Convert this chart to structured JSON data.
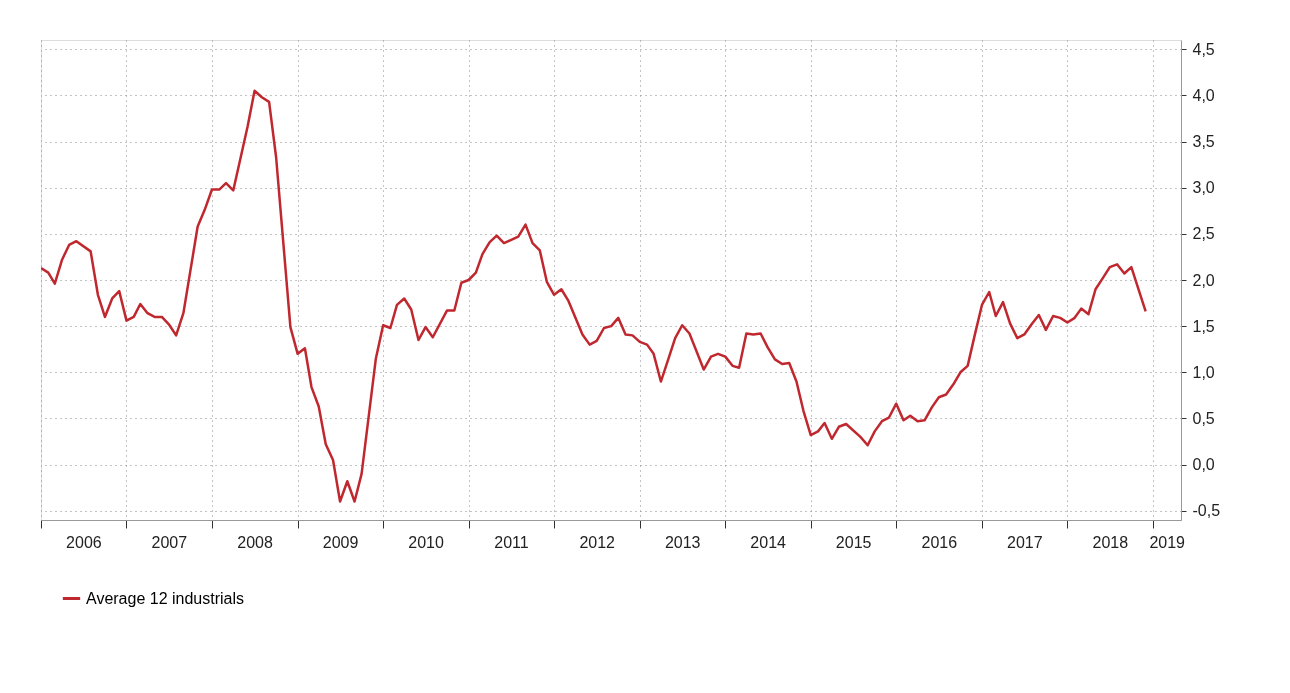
{
  "chart_data": {
    "type": "line",
    "x": [
      "2006-01",
      "2006-02",
      "2006-03",
      "2006-04",
      "2006-05",
      "2006-06",
      "2006-08",
      "2006-09",
      "2006-10",
      "2006-11",
      "2006-12",
      "2007-01",
      "2007-02",
      "2007-03",
      "2007-04",
      "2007-05",
      "2007-06",
      "2007-07",
      "2007-08",
      "2007-09",
      "2007-11",
      "2007-12",
      "2008-01",
      "2008-02",
      "2008-03",
      "2008-04",
      "2008-06",
      "2008-07",
      "2008-08",
      "2008-09",
      "2008-10",
      "2008-12",
      "2009-01",
      "2009-02",
      "2009-03",
      "2009-04",
      "2009-05",
      "2009-06",
      "2009-07",
      "2009-08",
      "2009-09",
      "2009-10",
      "2009-12",
      "2010-01",
      "2010-02",
      "2010-03",
      "2010-04",
      "2010-05",
      "2010-06",
      "2010-07",
      "2010-08",
      "2010-10",
      "2010-11",
      "2010-12",
      "2011-01",
      "2011-02",
      "2011-03",
      "2011-04",
      "2011-05",
      "2011-06",
      "2011-08",
      "2011-09",
      "2011-10",
      "2011-11",
      "2011-12",
      "2012-01",
      "2012-02",
      "2012-03",
      "2012-05",
      "2012-06",
      "2012-07",
      "2012-08",
      "2012-09",
      "2012-10",
      "2012-11",
      "2012-12",
      "2013-01",
      "2013-02",
      "2013-03",
      "2013-04",
      "2013-05",
      "2013-06",
      "2013-07",
      "2013-08",
      "2013-10",
      "2013-11",
      "2013-12",
      "2014-01",
      "2014-02",
      "2014-03",
      "2014-04",
      "2014-05",
      "2014-06",
      "2014-07",
      "2014-08",
      "2014-09",
      "2014-10",
      "2014-11",
      "2014-12",
      "2015-01",
      "2015-02",
      "2015-03",
      "2015-04",
      "2015-05",
      "2015-06",
      "2015-08",
      "2015-09",
      "2015-10",
      "2015-11",
      "2015-12",
      "2016-01",
      "2016-02",
      "2016-03",
      "2016-04",
      "2016-05",
      "2016-06",
      "2016-07",
      "2016-08",
      "2016-09",
      "2016-10",
      "2016-11",
      "2016-12",
      "2017-01",
      "2017-02",
      "2017-03",
      "2017-04",
      "2017-05",
      "2017-06",
      "2017-07",
      "2017-08",
      "2017-09",
      "2017-10",
      "2017-11",
      "2017-12",
      "2018-01",
      "2018-02",
      "2018-03",
      "2018-04",
      "2018-05",
      "2018-06",
      "2018-07",
      "2018-08",
      "2018-09",
      "2018-10",
      "2018-12"
    ],
    "series": [
      {
        "name": "Average 12 industrials",
        "color": "#c0282f",
        "values": [
          2.13,
          2.08,
          1.96,
          2.22,
          2.38,
          2.42,
          2.31,
          1.84,
          1.6,
          1.8,
          1.88,
          1.56,
          1.6,
          1.74,
          1.64,
          1.6,
          1.6,
          1.52,
          1.4,
          1.64,
          2.58,
          2.76,
          2.98,
          2.98,
          3.05,
          2.97,
          3.66,
          4.05,
          3.98,
          3.93,
          3.33,
          1.49,
          1.2,
          1.26,
          0.84,
          0.63,
          0.22,
          0.05,
          -0.4,
          -0.18,
          -0.4,
          -0.1,
          1.15,
          1.51,
          1.48,
          1.73,
          1.8,
          1.68,
          1.35,
          1.49,
          1.38,
          1.67,
          1.67,
          1.97,
          2.0,
          2.08,
          2.28,
          2.41,
          2.48,
          2.4,
          2.47,
          2.6,
          2.4,
          2.32,
          1.98,
          1.84,
          1.9,
          1.78,
          1.41,
          1.3,
          1.34,
          1.48,
          1.5,
          1.59,
          1.41,
          1.4,
          1.33,
          1.3,
          1.2,
          0.9,
          1.13,
          1.37,
          1.51,
          1.42,
          1.03,
          1.17,
          1.2,
          1.17,
          1.07,
          1.05,
          1.42,
          1.41,
          1.42,
          1.27,
          1.14,
          1.09,
          1.1,
          0.9,
          0.58,
          0.32,
          0.36,
          0.45,
          0.28,
          0.41,
          0.44,
          0.3,
          0.21,
          0.36,
          0.47,
          0.51,
          0.66,
          0.48,
          0.53,
          0.47,
          0.48,
          0.62,
          0.73,
          0.76,
          0.87,
          1.0,
          1.07,
          1.4,
          1.73,
          1.87,
          1.61,
          1.76,
          1.53,
          1.37,
          1.41,
          1.52,
          1.62,
          1.46,
          1.61,
          1.59,
          1.54,
          1.59,
          1.69,
          1.63,
          1.9,
          2.02,
          2.14,
          2.17,
          2.07,
          2.14,
          1.66
        ]
      }
    ],
    "xlim": [
      "2006-01",
      "2019-05"
    ],
    "xticks": [
      {
        "value": "2006-01",
        "label": null
      },
      {
        "value": "2007-01",
        "label": null
      },
      {
        "value": "2008-01",
        "label": null
      },
      {
        "value": "2009-01",
        "label": null
      },
      {
        "value": "2010-01",
        "label": null
      },
      {
        "value": "2011-01",
        "label": null
      },
      {
        "value": "2012-01",
        "label": null
      },
      {
        "value": "2013-01",
        "label": null
      },
      {
        "value": "2014-01",
        "label": null
      },
      {
        "value": "2015-01",
        "label": null
      },
      {
        "value": "2016-01",
        "label": null
      },
      {
        "value": "2017-01",
        "label": null
      },
      {
        "value": "2018-01",
        "label": null
      },
      {
        "value": "2019-01",
        "label": null
      },
      {
        "value": "2006-07",
        "label": "2006"
      },
      {
        "value": "2007-07",
        "label": "2007"
      },
      {
        "value": "2008-07",
        "label": "2008"
      },
      {
        "value": "2009-07",
        "label": "2009"
      },
      {
        "value": "2010-07",
        "label": "2010"
      },
      {
        "value": "2011-07",
        "label": "2011"
      },
      {
        "value": "2012-07",
        "label": "2012"
      },
      {
        "value": "2013-07",
        "label": "2013"
      },
      {
        "value": "2014-07",
        "label": "2014"
      },
      {
        "value": "2015-07",
        "label": "2015"
      },
      {
        "value": "2016-07",
        "label": "2016"
      },
      {
        "value": "2017-07",
        "label": "2017"
      },
      {
        "value": "2018-07",
        "label": "2018"
      },
      {
        "value": "2019-03",
        "label": "2019"
      }
    ],
    "ylim": [
      -0.6,
      4.6
    ],
    "yticks": [
      {
        "value": -0.5,
        "label": "-0,5"
      },
      {
        "value": 0,
        "label": "0,0"
      },
      {
        "value": 0.5,
        "label": "0,5"
      },
      {
        "value": 1,
        "label": "1,0"
      },
      {
        "value": 1.5,
        "label": "1,5"
      },
      {
        "value": 2,
        "label": "2,0"
      },
      {
        "value": 2.5,
        "label": "2,5"
      },
      {
        "value": 3,
        "label": "3,0"
      },
      {
        "value": 3.5,
        "label": "3,5"
      },
      {
        "value": 4,
        "label": "4,0"
      },
      {
        "value": 4.5,
        "label": "4,5"
      }
    ],
    "grid": true,
    "legend": "bottom",
    "line_style": "solid",
    "marker": "none"
  }
}
